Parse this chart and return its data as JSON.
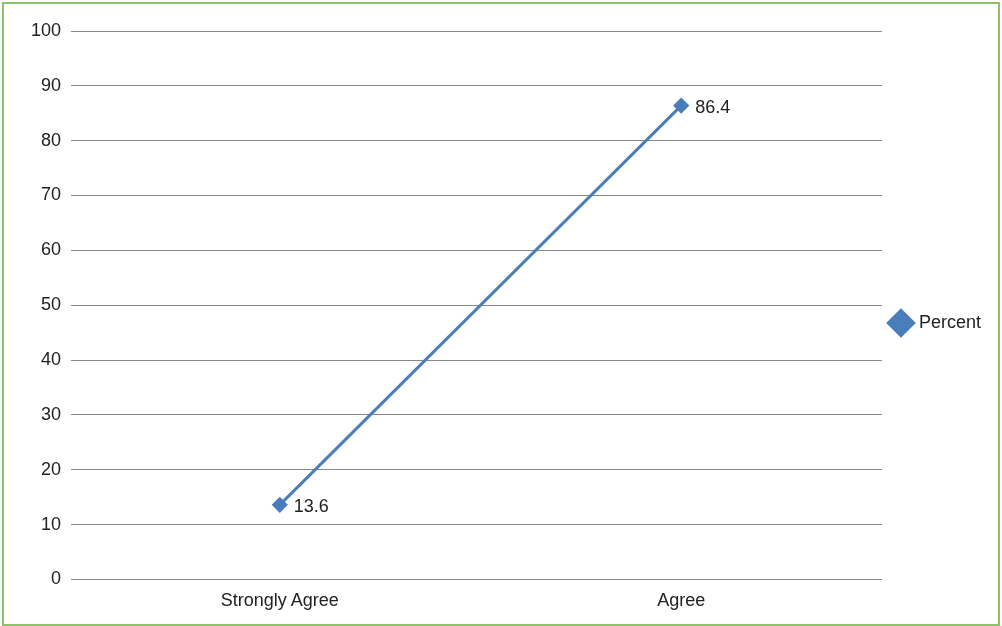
{
  "chart_data": {
    "type": "line",
    "categories": [
      "Strongly Agree",
      "Agree"
    ],
    "series": [
      {
        "name": "Percent",
        "color": "#4a7ebb",
        "values": [
          13.6,
          86.4
        ]
      }
    ],
    "ylim": [
      0,
      100
    ],
    "yticks": [
      0,
      10,
      20,
      30,
      40,
      50,
      60,
      70,
      80,
      90,
      100
    ],
    "grid": "y",
    "legend": "right",
    "marker": "diamond",
    "line_style": "solid",
    "data_labels": true
  }
}
